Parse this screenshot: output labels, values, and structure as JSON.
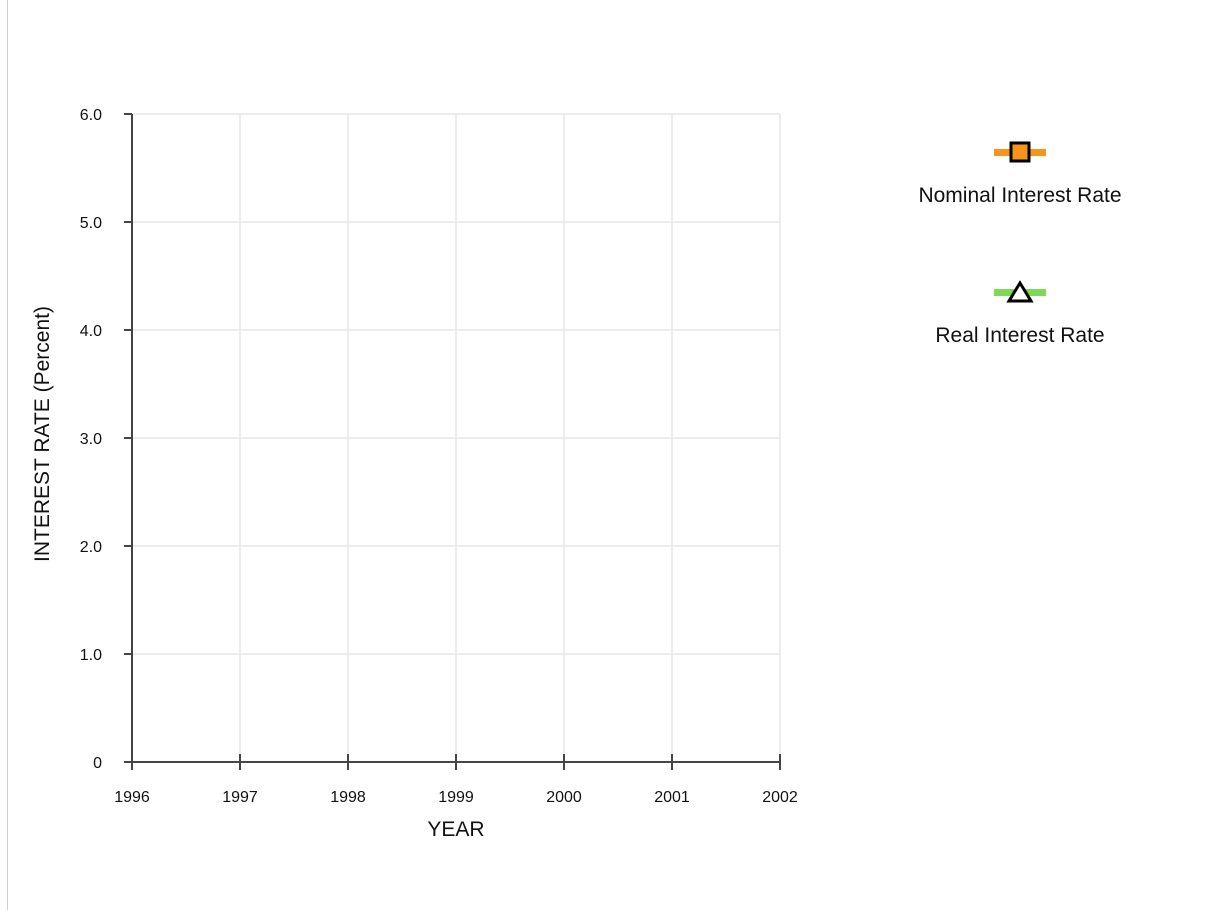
{
  "chart_data": {
    "type": "line",
    "title": "",
    "xlabel": "YEAR",
    "ylabel": "INTEREST RATE (Percent)",
    "x_ticks": [
      "1996",
      "1997",
      "1998",
      "1999",
      "2000",
      "2001",
      "2002"
    ],
    "y_ticks": [
      "0",
      "1.0",
      "2.0",
      "3.0",
      "4.0",
      "5.0",
      "6.0"
    ],
    "xlim": [
      1996,
      2002
    ],
    "ylim": [
      0,
      6
    ],
    "grid": true,
    "legend_position": "right",
    "series": [
      {
        "name": "Nominal Interest Rate",
        "color": "#f7941d",
        "marker": "square",
        "values": []
      },
      {
        "name": "Real Interest Rate",
        "color": "#7ed957",
        "marker": "triangle",
        "values": []
      }
    ]
  }
}
